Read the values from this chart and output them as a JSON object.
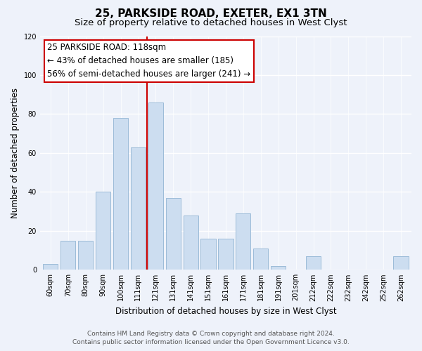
{
  "title": "25, PARKSIDE ROAD, EXETER, EX1 3TN",
  "subtitle": "Size of property relative to detached houses in West Clyst",
  "xlabel": "Distribution of detached houses by size in West Clyst",
  "ylabel": "Number of detached properties",
  "categories": [
    "60sqm",
    "70sqm",
    "80sqm",
    "90sqm",
    "100sqm",
    "111sqm",
    "121sqm",
    "131sqm",
    "141sqm",
    "151sqm",
    "161sqm",
    "171sqm",
    "181sqm",
    "191sqm",
    "201sqm",
    "212sqm",
    "222sqm",
    "232sqm",
    "242sqm",
    "252sqm",
    "262sqm"
  ],
  "values": [
    3,
    15,
    15,
    40,
    78,
    63,
    86,
    37,
    28,
    16,
    16,
    29,
    11,
    2,
    0,
    7,
    0,
    0,
    0,
    0,
    7
  ],
  "bar_color": "#ccddf0",
  "bar_edge_color": "#9bbbd8",
  "reference_line_x_label": "121sqm",
  "reference_line_color": "#cc0000",
  "ylim": [
    0,
    120
  ],
  "yticks": [
    0,
    20,
    40,
    60,
    80,
    100,
    120
  ],
  "annotation_title": "25 PARKSIDE ROAD: 118sqm",
  "annotation_line1": "← 43% of detached houses are smaller (185)",
  "annotation_line2": "56% of semi-detached houses are larger (241) →",
  "annotation_box_color": "#ffffff",
  "annotation_box_edge_color": "#cc0000",
  "footer_line1": "Contains HM Land Registry data © Crown copyright and database right 2024.",
  "footer_line2": "Contains public sector information licensed under the Open Government Licence v3.0.",
  "background_color": "#eef2fa",
  "grid_color": "#ffffff",
  "title_fontsize": 11,
  "subtitle_fontsize": 9.5,
  "axis_label_fontsize": 8.5,
  "tick_fontsize": 7,
  "footer_fontsize": 6.5,
  "annotation_fontsize": 8.5
}
